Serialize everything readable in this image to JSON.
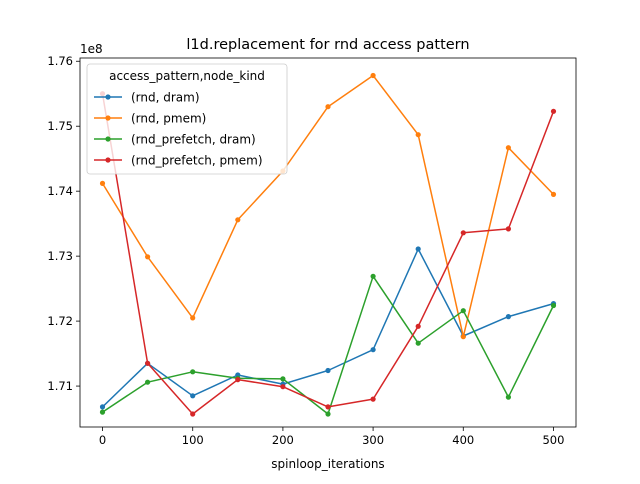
{
  "chart_data": {
    "type": "line",
    "title": "l1d.replacement for rnd access pattern",
    "xlabel": "spinloop_iterations",
    "ylabel": "",
    "y_offset_label": "1e8",
    "y_multiplier": 100000000,
    "xlim": [
      -25,
      525
    ],
    "ylim": [
      1.7037,
      1.7605
    ],
    "x_ticks": [
      0,
      100,
      200,
      300,
      400,
      500
    ],
    "x_tick_labels": [
      "0",
      "100",
      "200",
      "300",
      "400",
      "500"
    ],
    "y_ticks": [
      1.71,
      1.72,
      1.73,
      1.74,
      1.75,
      1.76
    ],
    "y_tick_labels": [
      "1.71",
      "1.72",
      "1.73",
      "1.74",
      "1.75",
      "1.76"
    ],
    "grid": false,
    "legend": {
      "title": "access_pattern,node_kind",
      "placement": "top-left"
    },
    "x": [
      0,
      50,
      100,
      150,
      200,
      250,
      300,
      350,
      400,
      450,
      500
    ],
    "series": [
      {
        "name": "(rnd, dram)",
        "color": "#1f77b4",
        "values": [
          1.7068,
          1.7135,
          1.7085,
          1.7117,
          1.7103,
          1.7124,
          1.7156,
          1.7311,
          1.7177,
          1.7207,
          1.7227
        ]
      },
      {
        "name": "(rnd, pmem)",
        "color": "#ff7f0e",
        "values": [
          1.7412,
          1.7299,
          1.7205,
          1.7356,
          1.7431,
          1.753,
          1.7578,
          1.7487,
          1.7176,
          1.7467,
          1.7395
        ]
      },
      {
        "name": "(rnd_prefetch, dram)",
        "color": "#2ca02c",
        "values": [
          1.706,
          1.7106,
          1.7122,
          1.7112,
          1.7111,
          1.7057,
          1.7269,
          1.7166,
          1.7216,
          1.7083,
          1.7224
        ]
      },
      {
        "name": "(rnd_prefetch, pmem)",
        "color": "#d62728",
        "values": [
          1.755,
          1.7135,
          1.7057,
          1.711,
          1.7099,
          1.7068,
          1.708,
          1.7192,
          1.7336,
          1.7342,
          1.7523
        ]
      }
    ]
  }
}
